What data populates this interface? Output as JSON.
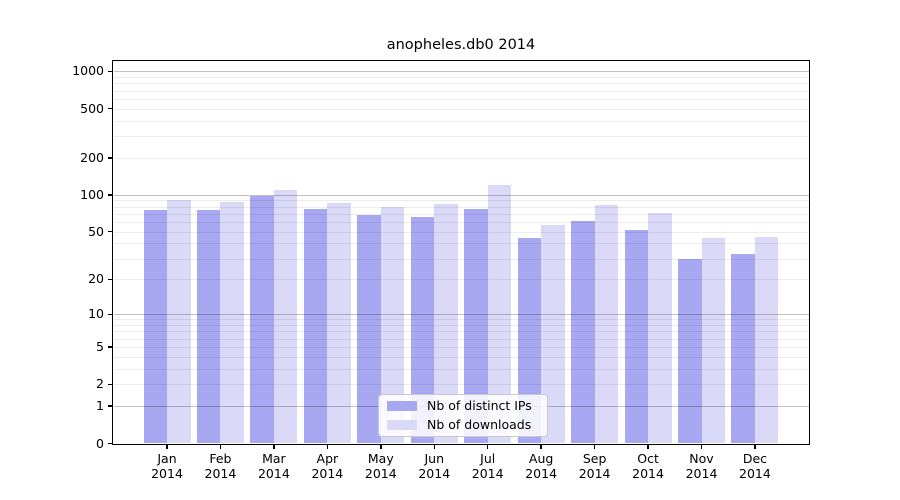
{
  "chart_data": {
    "type": "bar",
    "title": "anopheles.db0 2014",
    "categories": [
      "Jan",
      "Feb",
      "Mar",
      "Apr",
      "May",
      "Jun",
      "Jul",
      "Aug",
      "Sep",
      "Oct",
      "Nov",
      "Dec"
    ],
    "x_year_label": "2014",
    "series": [
      {
        "name": "Nb of distinct IPs",
        "color": "#a8a8f2",
        "values": [
          75,
          75,
          97,
          76,
          69,
          66,
          77,
          44,
          61,
          52,
          30,
          33
        ]
      },
      {
        "name": "Nb of downloads",
        "color": "#dadaf8",
        "values": [
          90,
          88,
          110,
          86,
          80,
          85,
          120,
          57,
          82,
          71,
          44,
          45
        ]
      }
    ],
    "scale": "log1p",
    "ylim": [
      0,
      1200
    ],
    "y_ticks": [
      0,
      1,
      2,
      5,
      10,
      20,
      50,
      100,
      200,
      500,
      1000
    ],
    "grid": "horizontal",
    "legend_position": "inside-bottom-center",
    "colors": {
      "major_grid": "#c2c2c2",
      "minor_grid": "#ebebeb",
      "spine": "#000000",
      "background": "#ffffff",
      "text": "#000000"
    }
  }
}
